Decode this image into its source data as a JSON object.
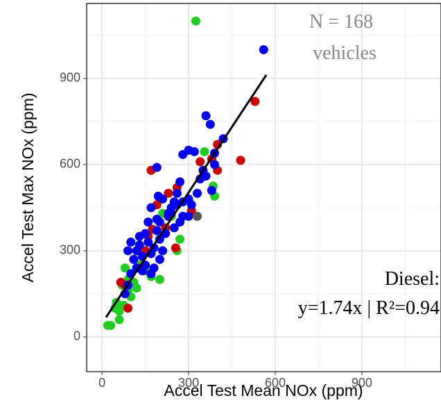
{
  "chart_data": {
    "type": "scatter",
    "x_label": "Accel Test Mean NOx (ppm)",
    "y_label": "Accel Test Max NOx (ppm)",
    "annotations": [
      "N = 168",
      "vehicles",
      "Diesel:",
      "y=1.74x | R²=0.94"
    ],
    "xlim": [
      -53,
      1174
    ],
    "ylim": [
      -121,
      1161
    ],
    "xticks": [
      0,
      300,
      600,
      900
    ],
    "yticks": [
      0,
      300,
      600,
      900
    ],
    "x_minor_grid": [
      150,
      450,
      750,
      1050
    ],
    "y_minor_grid": [
      150,
      450,
      750,
      1050
    ],
    "grid": true,
    "series": [
      {
        "color": "#22cc22",
        "x": [
          325,
          355,
          390,
          385,
          20,
          30,
          50,
          60,
          70,
          80,
          90,
          100,
          120,
          150,
          170,
          200,
          240,
          270,
          260,
          60,
          45,
          110,
          130,
          210,
          75,
          90
        ],
        "values": [
          1100,
          645,
          490,
          525,
          40,
          40,
          120,
          90,
          180,
          240,
          200,
          140,
          170,
          230,
          210,
          200,
          420,
          340,
          300,
          60,
          100,
          190,
          250,
          430,
          110,
          160
        ]
      },
      {
        "color": "#cc0000",
        "x": [
          530,
          480,
          400,
          400,
          340,
          170,
          190,
          230,
          260,
          175,
          160,
          255,
          310,
          65,
          80,
          90,
          380,
          150,
          220
        ],
        "values": [
          820,
          615,
          670,
          580,
          610,
          580,
          460,
          500,
          520,
          375,
          350,
          310,
          440,
          190,
          180,
          100,
          620,
          300,
          380
        ]
      },
      {
        "color": "#0000ee",
        "x": [
          560,
          360,
          375,
          420,
          390,
          300,
          320,
          280,
          190,
          340,
          380,
          270,
          260,
          300,
          280,
          240,
          210,
          230,
          200,
          190,
          160,
          150,
          130,
          100,
          120,
          90,
          110,
          140,
          150,
          170,
          160,
          180,
          200,
          220,
          250,
          270,
          300,
          330,
          350,
          360,
          390,
          260,
          240,
          180,
          140,
          120,
          100,
          130,
          170,
          200,
          230,
          250,
          280,
          310,
          190,
          210,
          170,
          195,
          90,
          80
        ],
        "values": [
          1000,
          770,
          740,
          690,
          640,
          650,
          645,
          635,
          590,
          550,
          510,
          540,
          500,
          420,
          470,
          450,
          480,
          430,
          400,
          410,
          400,
          360,
          350,
          330,
          300,
          300,
          270,
          280,
          250,
          220,
          330,
          310,
          340,
          360,
          380,
          400,
          480,
          500,
          580,
          560,
          600,
          460,
          430,
          240,
          230,
          240,
          220,
          320,
          290,
          270,
          420,
          470,
          420,
          460,
          370,
          300,
          450,
          490,
          180,
          150
        ]
      },
      {
        "color": "#555555",
        "x": [
          330
        ],
        "values": [
          420
        ]
      }
    ],
    "fit": {
      "color": "#000000",
      "x": [
        14,
        569
      ],
      "values": [
        68,
        912
      ]
    }
  }
}
